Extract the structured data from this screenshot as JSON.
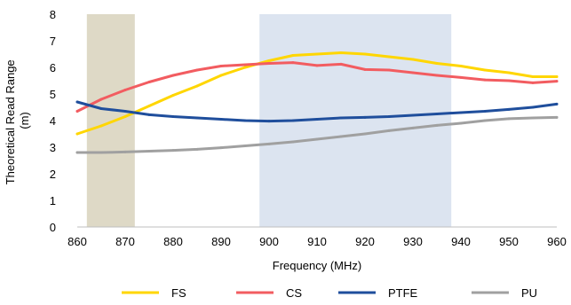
{
  "chart_data": {
    "type": "line",
    "xlabel": "Frequency (MHz)",
    "ylabel_lines": [
      "Theoretical Read Range",
      "(m)"
    ],
    "xlim": [
      860,
      960
    ],
    "ylim": [
      0,
      8
    ],
    "xticks": [
      860,
      870,
      880,
      890,
      900,
      910,
      920,
      930,
      940,
      950,
      960
    ],
    "yticks": [
      0,
      1,
      2,
      3,
      4,
      5,
      6,
      7,
      8
    ],
    "grid": false,
    "legend_position": "bottom",
    "shaded_bands": [
      {
        "x0": 862,
        "x1": 872,
        "color": "#ded9c6"
      },
      {
        "x0": 898,
        "x1": 938,
        "color": "#dce4f0"
      }
    ],
    "x": [
      860,
      865,
      870,
      875,
      880,
      885,
      890,
      895,
      900,
      905,
      910,
      915,
      920,
      925,
      930,
      935,
      940,
      945,
      950,
      955,
      960
    ],
    "series": [
      {
        "name": "FS",
        "color": "#ffd600",
        "values": [
          3.5,
          3.8,
          4.15,
          4.55,
          4.95,
          5.3,
          5.7,
          6.0,
          6.25,
          6.45,
          6.5,
          6.55,
          6.5,
          6.4,
          6.3,
          6.15,
          6.05,
          5.9,
          5.8,
          5.65,
          5.65
        ]
      },
      {
        "name": "CS",
        "color": "#f25c60",
        "values": [
          4.35,
          4.8,
          5.15,
          5.45,
          5.7,
          5.9,
          6.05,
          6.1,
          6.15,
          6.18,
          6.07,
          6.12,
          5.92,
          5.9,
          5.8,
          5.7,
          5.62,
          5.53,
          5.5,
          5.42,
          5.48
        ]
      },
      {
        "name": "PTFE",
        "color": "#1f4e9c",
        "values": [
          4.7,
          4.45,
          4.35,
          4.22,
          4.15,
          4.1,
          4.05,
          4.0,
          3.98,
          4.0,
          4.05,
          4.1,
          4.12,
          4.15,
          4.2,
          4.25,
          4.3,
          4.35,
          4.42,
          4.5,
          4.62
        ]
      },
      {
        "name": "PU",
        "color": "#a0a0a0",
        "values": [
          2.8,
          2.8,
          2.82,
          2.85,
          2.88,
          2.92,
          2.98,
          3.05,
          3.12,
          3.2,
          3.3,
          3.4,
          3.5,
          3.62,
          3.72,
          3.82,
          3.9,
          4.0,
          4.07,
          4.1,
          4.12
        ]
      }
    ]
  }
}
